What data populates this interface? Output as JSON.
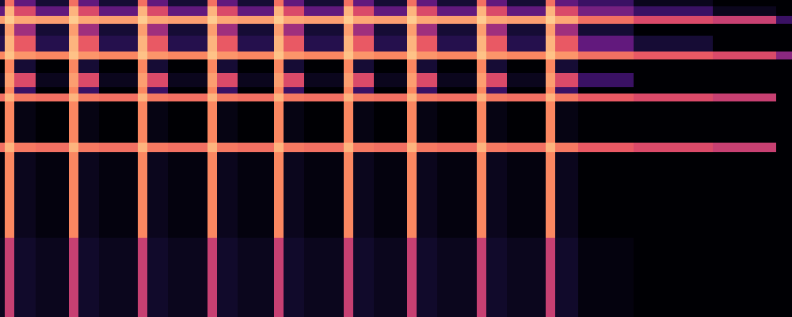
{
  "chart_data": {
    "type": "heatmap",
    "x": [
      0,
      6,
      18,
      45,
      87,
      99,
      125,
      174,
      186,
      212,
      262,
      274,
      300,
      346,
      358,
      384,
      434,
      446,
      472,
      514,
      526,
      552,
      602,
      614,
      640,
      689,
      701,
      730,
      800,
      900,
      980,
      1000
    ],
    "y": [
      0,
      100,
      208,
      220,
      272,
      282,
      290,
      308,
      325,
      335,
      355,
      370,
      380,
      392,
      400
    ],
    "xlim": [
      0,
      1000
    ],
    "ylim": [
      0,
      400
    ],
    "zlim": [
      0,
      1
    ],
    "tick_labels": false,
    "grid": false,
    "z": [
      [
        0.05,
        0.55,
        0.08,
        0.05,
        0.55,
        0.08,
        0.05,
        0.55,
        0.08,
        0.05,
        0.55,
        0.08,
        0.05,
        0.55,
        0.08,
        0.05,
        0.55,
        0.08,
        0.05,
        0.55,
        0.08,
        0.05,
        0.55,
        0.08,
        0.05,
        0.55,
        0.08,
        0.02,
        0,
        0,
        0
      ],
      [
        0.02,
        0.75,
        0.05,
        0.02,
        0.75,
        0.05,
        0.02,
        0.75,
        0.05,
        0.02,
        0.75,
        0.05,
        0.02,
        0.75,
        0.05,
        0.02,
        0.75,
        0.05,
        0.02,
        0.75,
        0.05,
        0.02,
        0.75,
        0.05,
        0.02,
        0.75,
        0.05,
        0,
        0,
        0,
        0
      ],
      [
        0.7,
        0.85,
        0.72,
        0.7,
        0.85,
        0.72,
        0.7,
        0.85,
        0.72,
        0.7,
        0.85,
        0.72,
        0.7,
        0.85,
        0.72,
        0.7,
        0.85,
        0.72,
        0.7,
        0.85,
        0.72,
        0.7,
        0.85,
        0.72,
        0.7,
        0.85,
        0.72,
        0.65,
        0.6,
        0.55,
        0
      ],
      [
        0,
        0.75,
        0.03,
        0,
        0.75,
        0.03,
        0,
        0.75,
        0.03,
        0,
        0.75,
        0.03,
        0,
        0.75,
        0.03,
        0,
        0.75,
        0.03,
        0,
        0.75,
        0.03,
        0,
        0.75,
        0.03,
        0,
        0.75,
        0.03,
        0,
        0,
        0,
        0
      ],
      [
        0.7,
        0.85,
        0.72,
        0.7,
        0.85,
        0.72,
        0.7,
        0.85,
        0.72,
        0.7,
        0.85,
        0.72,
        0.7,
        0.85,
        0.72,
        0.7,
        0.85,
        0.72,
        0.7,
        0.85,
        0.72,
        0.7,
        0.85,
        0.72,
        0.7,
        0.85,
        0.72,
        0.65,
        0.6,
        0.55,
        0
      ],
      [
        0,
        0.75,
        0.2,
        0,
        0.75,
        0.2,
        0,
        0.75,
        0.2,
        0,
        0.75,
        0.2,
        0,
        0.75,
        0.2,
        0,
        0.75,
        0.2,
        0,
        0.75,
        0.2,
        0,
        0.75,
        0.2,
        0,
        0.75,
        0.2,
        0,
        0,
        0,
        0
      ],
      [
        0.05,
        0.8,
        0.6,
        0.05,
        0.8,
        0.6,
        0.05,
        0.8,
        0.6,
        0.05,
        0.8,
        0.6,
        0.05,
        0.8,
        0.6,
        0.05,
        0.8,
        0.6,
        0.05,
        0.8,
        0.6,
        0.05,
        0.8,
        0.6,
        0.05,
        0.8,
        0.6,
        0.2,
        0,
        0,
        0
      ],
      [
        0,
        0.75,
        0.1,
        0,
        0.75,
        0.1,
        0,
        0.75,
        0.1,
        0,
        0.75,
        0.1,
        0,
        0.75,
        0.1,
        0,
        0.75,
        0.1,
        0,
        0.75,
        0.1,
        0,
        0.75,
        0.1,
        0,
        0.75,
        0.1,
        0,
        0,
        0,
        0
      ],
      [
        0.75,
        0.88,
        0.78,
        0.75,
        0.88,
        0.78,
        0.75,
        0.88,
        0.78,
        0.75,
        0.88,
        0.78,
        0.75,
        0.88,
        0.78,
        0.75,
        0.88,
        0.78,
        0.75,
        0.88,
        0.78,
        0.75,
        0.88,
        0.78,
        0.75,
        0.88,
        0.78,
        0.7,
        0.65,
        0.6,
        0.4
      ],
      [
        0.15,
        0.85,
        0.65,
        0.15,
        0.85,
        0.65,
        0.15,
        0.85,
        0.65,
        0.15,
        0.85,
        0.65,
        0.15,
        0.85,
        0.65,
        0.15,
        0.85,
        0.65,
        0.15,
        0.85,
        0.65,
        0.15,
        0.85,
        0.65,
        0.15,
        0.85,
        0.65,
        0.3,
        0.1,
        0,
        0
      ],
      [
        0.1,
        0.8,
        0.45,
        0.1,
        0.8,
        0.45,
        0.1,
        0.8,
        0.45,
        0.1,
        0.8,
        0.45,
        0.1,
        0.8,
        0.45,
        0.1,
        0.8,
        0.45,
        0.1,
        0.8,
        0.45,
        0.1,
        0.8,
        0.45,
        0.1,
        0.8,
        0.45,
        0.1,
        0,
        0,
        0
      ],
      [
        0.8,
        0.9,
        0.82,
        0.8,
        0.9,
        0.82,
        0.8,
        0.9,
        0.82,
        0.8,
        0.9,
        0.82,
        0.8,
        0.9,
        0.82,
        0.8,
        0.9,
        0.82,
        0.8,
        0.9,
        0.82,
        0.8,
        0.9,
        0.82,
        0.8,
        0.9,
        0.82,
        0.7,
        0.6,
        0.55,
        0.2
      ],
      [
        0.3,
        0.85,
        0.6,
        0.3,
        0.85,
        0.6,
        0.3,
        0.85,
        0.6,
        0.3,
        0.85,
        0.6,
        0.3,
        0.85,
        0.6,
        0.3,
        0.85,
        0.6,
        0.3,
        0.85,
        0.6,
        0.3,
        0.85,
        0.6,
        0.3,
        0.85,
        0.6,
        0.35,
        0.2,
        0.05,
        0
      ],
      [
        0.1,
        0.7,
        0.3,
        0.1,
        0.7,
        0.3,
        0.1,
        0.7,
        0.3,
        0.1,
        0.7,
        0.3,
        0.1,
        0.7,
        0.3,
        0.1,
        0.7,
        0.3,
        0.1,
        0.7,
        0.3,
        0.1,
        0.7,
        0.3,
        0.1,
        0.7,
        0.3,
        0.2,
        0.05,
        0,
        0
      ]
    ]
  }
}
